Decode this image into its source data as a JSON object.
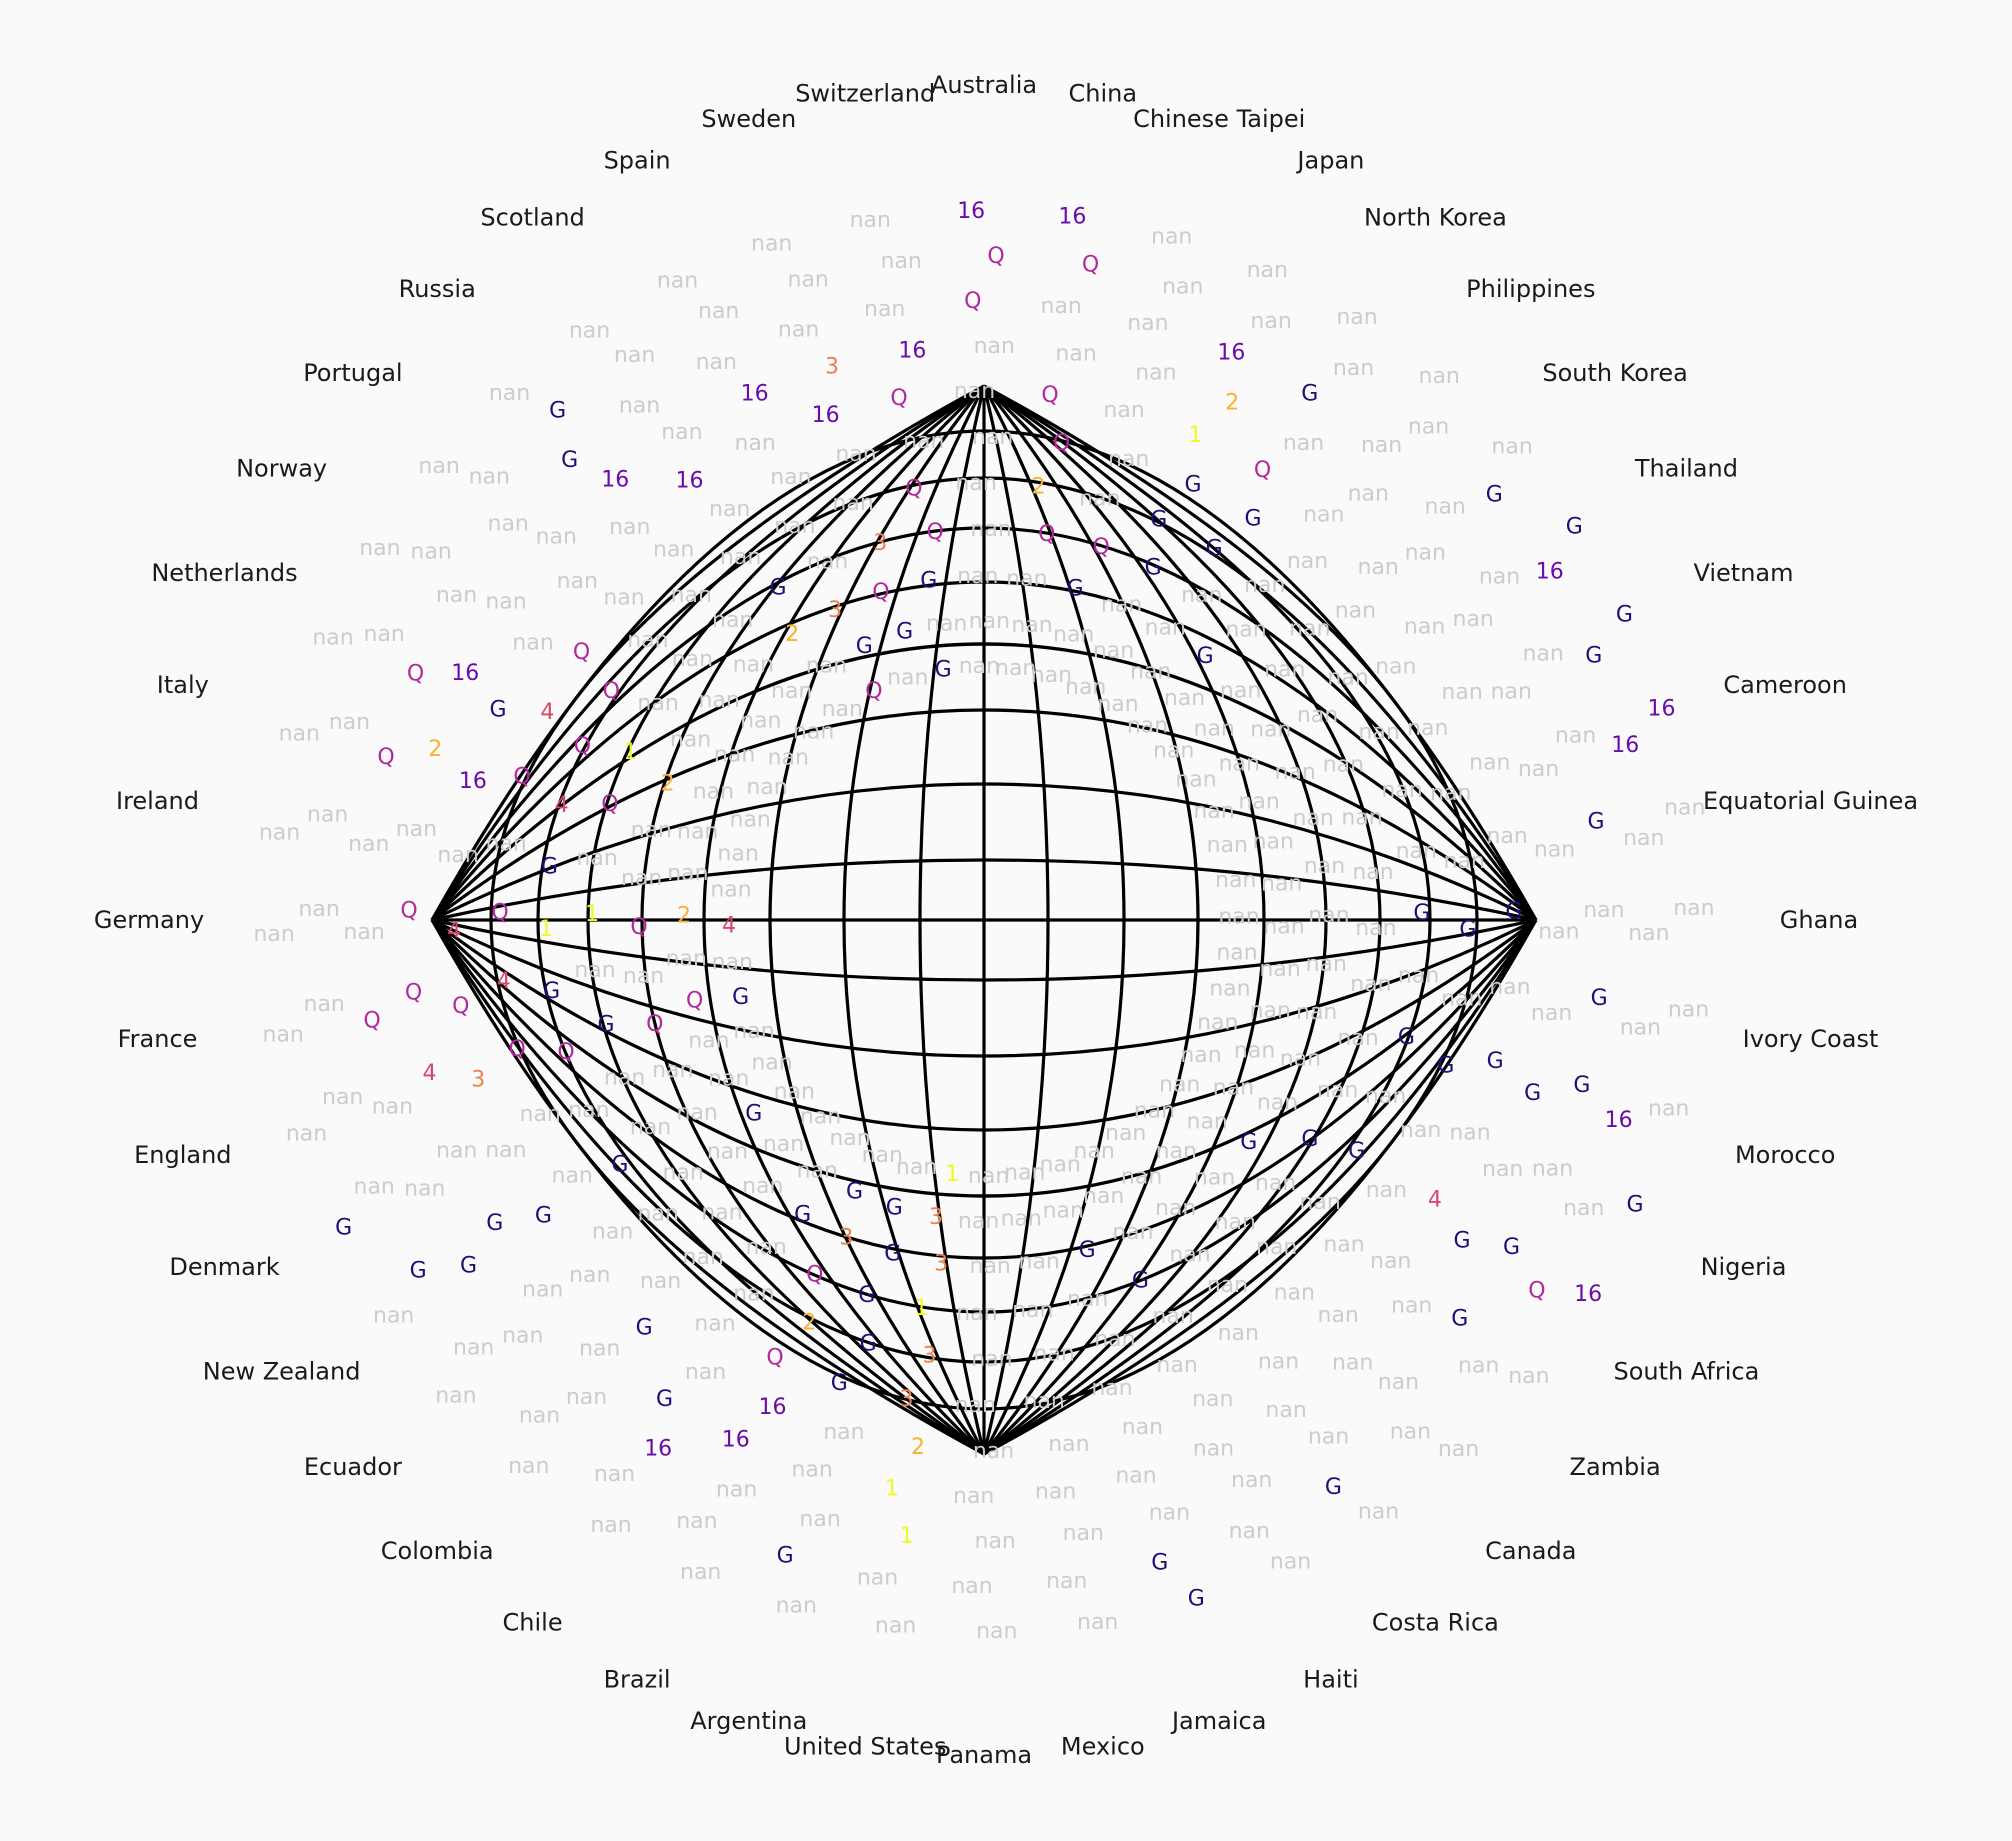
{
  "chart_data": {
    "type": "radial-heatmap",
    "title": "",
    "countries": [
      "Australia",
      "China",
      "Chinese Taipei",
      "Japan",
      "North Korea",
      "Philippines",
      "South Korea",
      "Thailand",
      "Vietnam",
      "Cameroon",
      "Equatorial Guinea",
      "Ghana",
      "Ivory Coast",
      "Morocco",
      "Nigeria",
      "South Africa",
      "Zambia",
      "Canada",
      "Costa Rica",
      "Haiti",
      "Jamaica",
      "Mexico",
      "Panama",
      "United States",
      "Argentina",
      "Brazil",
      "Chile",
      "Colombia",
      "Ecuador",
      "New Zealand",
      "Denmark",
      "England",
      "France",
      "Germany",
      "Ireland",
      "Italy",
      "Netherlands",
      "Norway",
      "Portugal",
      "Russia",
      "Scotland",
      "Spain",
      "Sweden",
      "Switzerland"
    ],
    "rings": [
      "r1",
      "r2",
      "r3",
      "r4",
      "r5",
      "r6",
      "r7",
      "r8",
      "r9",
      "r10",
      "r11"
    ],
    "stage_levels": [
      "G",
      "16",
      "Q",
      "4",
      "3",
      "2",
      "1"
    ],
    "stage_colors": {
      "G": "#1a1178",
      "16": "#6a0da8",
      "Q": "#b12a9c",
      "4": "#d9466a",
      "3": "#f07f4f",
      "2": "#fbb12e",
      "1": "#f0f921",
      "nan": "#cccccc"
    },
    "values": [
      [
        "nan",
        "nan",
        "nan",
        "nan",
        "nan",
        "nan",
        "nan",
        "nan",
        "Q",
        "Q",
        "16"
      ],
      [
        "nan",
        "nan",
        "nan",
        "Q",
        "2",
        "Q",
        "Q",
        "nan",
        "nan",
        "Q",
        "16"
      ],
      [
        "nan",
        "nan",
        "G",
        "Q",
        "nan",
        "nan",
        "nan",
        "nan",
        "nan",
        "nan",
        "nan"
      ],
      [
        "nan",
        "nan",
        "nan",
        "G",
        "G",
        "G",
        "1",
        "2",
        "16",
        "nan",
        "nan"
      ],
      [
        "nan",
        "nan",
        "nan",
        "nan",
        "G",
        "G",
        "Q",
        "nan",
        "G",
        "nan",
        "nan"
      ],
      [
        "nan",
        "nan",
        "G",
        "nan",
        "nan",
        "nan",
        "nan",
        "nan",
        "nan",
        "nan",
        "nan"
      ],
      [
        "nan",
        "nan",
        "nan",
        "nan",
        "nan",
        "nan",
        "nan",
        "nan",
        "nan",
        "G",
        "nan"
      ],
      [
        "nan",
        "nan",
        "nan",
        "nan",
        "nan",
        "nan",
        "nan",
        "nan",
        "nan",
        "16",
        "G"
      ],
      [
        "nan",
        "nan",
        "nan",
        "nan",
        "nan",
        "nan",
        "nan",
        "nan",
        "nan",
        "G",
        "G"
      ],
      [
        "nan",
        "nan",
        "nan",
        "nan",
        "nan",
        "nan",
        "nan",
        "nan",
        "nan",
        "16",
        "16"
      ],
      [
        "nan",
        "nan",
        "nan",
        "nan",
        "nan",
        "nan",
        "nan",
        "nan",
        "G",
        "nan",
        "nan"
      ],
      [
        "nan",
        "nan",
        "nan",
        "nan",
        "G",
        "G",
        "G",
        "nan",
        "nan",
        "nan",
        "nan"
      ],
      [
        "nan",
        "nan",
        "nan",
        "nan",
        "nan",
        "nan",
        "nan",
        "nan",
        "G",
        "nan",
        "nan"
      ],
      [
        "nan",
        "nan",
        "nan",
        "nan",
        "G",
        "G",
        "G",
        "G",
        "G",
        "16",
        "nan"
      ],
      [
        "nan",
        "nan",
        "nan",
        "nan",
        "nan",
        "nan",
        "nan",
        "nan",
        "nan",
        "nan",
        "G"
      ],
      [
        "nan",
        "nan",
        "nan",
        "G",
        "G",
        "nan",
        "4",
        "G",
        "G",
        "Q",
        "16"
      ],
      [
        "nan",
        "nan",
        "G",
        "nan",
        "nan",
        "nan",
        "nan",
        "nan",
        "G",
        "nan",
        "nan"
      ],
      [
        "nan",
        "nan",
        "nan",
        "nan",
        "nan",
        "nan",
        "nan",
        "nan",
        "nan",
        "nan",
        "nan"
      ],
      [
        "nan",
        "nan",
        "nan",
        "nan",
        "nan",
        "nan",
        "nan",
        "nan",
        "nan",
        "G",
        "nan"
      ],
      [
        "nan",
        "nan",
        "nan",
        "G",
        "nan",
        "nan",
        "nan",
        "nan",
        "nan",
        "nan",
        "nan"
      ],
      [
        "nan",
        "nan",
        "G",
        "nan",
        "nan",
        "nan",
        "nan",
        "nan",
        "nan",
        "G",
        "G"
      ],
      [
        "nan",
        "nan",
        "nan",
        "nan",
        "nan",
        "nan",
        "nan",
        "nan",
        "nan",
        "nan",
        "nan"
      ],
      [
        "nan",
        "nan",
        "nan",
        "nan",
        "nan",
        "nan",
        "nan",
        "nan",
        "nan",
        "nan",
        "nan"
      ],
      [
        "1",
        "3",
        "3",
        "1",
        "3",
        "3",
        "2",
        "1",
        "1",
        "nan",
        "nan"
      ],
      [
        "nan",
        "G",
        "G",
        "G",
        "G",
        "G",
        "nan",
        "nan",
        "nan",
        "G",
        "nan"
      ],
      [
        "nan",
        "G",
        "3",
        "Q",
        "2",
        "Q",
        "16",
        "16",
        "nan",
        "nan",
        "nan"
      ],
      [
        "nan",
        "nan",
        "G",
        "nan",
        "nan",
        "nan",
        "nan",
        "G",
        "16",
        "nan",
        "nan"
      ],
      [
        "nan",
        "nan",
        "nan",
        "nan",
        "nan",
        "nan",
        "G",
        "nan",
        "nan",
        "nan",
        "nan"
      ],
      [
        "nan",
        "G",
        "nan",
        "nan",
        "nan",
        "nan",
        "nan",
        "nan",
        "nan",
        "nan",
        "nan"
      ],
      [
        "nan",
        "nan",
        "nan",
        "nan",
        "G",
        "nan",
        "G",
        "G",
        "G",
        "G",
        "nan"
      ],
      [
        "nan",
        "nan",
        "nan",
        "nan",
        "nan",
        "nan",
        "nan",
        "nan",
        "nan",
        "nan",
        "G"
      ],
      [
        "G",
        "Q",
        "Q",
        "G",
        "Q",
        "Q",
        "3",
        "4",
        "nan",
        "nan",
        "nan"
      ],
      [
        "nan",
        "nan",
        "nan",
        "nan",
        "G",
        "4",
        "Q",
        "Q",
        "Q",
        "nan",
        "nan"
      ],
      [
        "4",
        "2",
        "Q",
        "1",
        "1",
        "Q",
        "4",
        "Q",
        "nan",
        "nan",
        "nan"
      ],
      [
        "nan",
        "nan",
        "nan",
        "nan",
        "G",
        "nan",
        "nan",
        "nan",
        "nan",
        "nan",
        "nan"
      ],
      [
        "nan",
        "nan",
        "nan",
        "Q",
        "4",
        "Q",
        "16",
        "2",
        "Q",
        "nan",
        "nan"
      ],
      [
        "nan",
        "nan",
        "2",
        "1",
        "Q",
        "4",
        "G",
        "16",
        "Q",
        "nan",
        "nan"
      ],
      [
        "nan",
        "nan",
        "nan",
        "nan",
        "Q",
        "Q",
        "nan",
        "nan",
        "nan",
        "nan",
        "nan"
      ],
      [
        "nan",
        "nan",
        "nan",
        "nan",
        "nan",
        "nan",
        "nan",
        "nan",
        "nan",
        "nan",
        "nan"
      ],
      [
        "nan",
        "nan",
        "nan",
        "nan",
        "nan",
        "nan",
        "nan",
        "16",
        "G",
        "G",
        "nan"
      ],
      [
        "nan",
        "nan",
        "2",
        "G",
        "nan",
        "nan",
        "16",
        "nan",
        "nan",
        "nan",
        "nan"
      ],
      [
        "Q",
        "G",
        "3",
        "nan",
        "nan",
        "nan",
        "nan",
        "16",
        "nan",
        "nan",
        "nan"
      ],
      [
        "nan",
        "G",
        "Q",
        "3",
        "nan",
        "nan",
        "16",
        "3",
        "nan",
        "nan",
        "nan"
      ],
      [
        "G",
        "nan",
        "G",
        "Q",
        "Q",
        "nan",
        "Q",
        "16",
        "nan",
        "nan",
        "nan"
      ]
    ]
  }
}
